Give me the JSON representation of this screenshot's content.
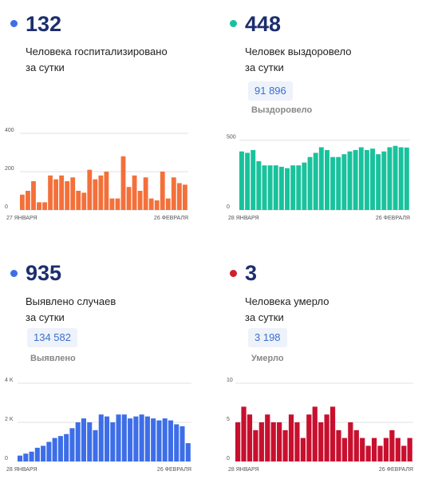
{
  "panels": [
    {
      "number": "132",
      "desc": [
        "Человека госпитализировано",
        "за сутки"
      ],
      "color": "#3d6ee8",
      "numcolor": "#1c2e6e",
      "pill": null,
      "pill_label": null
    },
    {
      "number": "448",
      "desc": [
        "Человек выздоровело",
        "за сутки"
      ],
      "color": "#18c29c",
      "numcolor": "#1c2e6e",
      "pill": "91 896",
      "pill_label": "Выздоровело"
    },
    {
      "number": "935",
      "desc": [
        "Выявлено случаев",
        "за сутки"
      ],
      "color": "#3d6ee8",
      "numcolor": "#1c2e6e",
      "pill": "134 582",
      "pill_label": "Выявлено"
    },
    {
      "number": "3",
      "desc": [
        "Человека умерло",
        "за сутки"
      ],
      "color": "#d0202b",
      "numcolor": "#1c2e6e",
      "pill": "3 198",
      "pill_label": "Умерло"
    }
  ],
  "chart_data": [
    {
      "type": "bar",
      "color": "#f4703a",
      "ylim": [
        0,
        400
      ],
      "yticks": [
        "0",
        "200",
        "400"
      ],
      "ytick_values": [
        0,
        200,
        400
      ],
      "x_start_label": "27 ЯНВАРЯ",
      "x_end_label": "26 ФЕВРАЛЯ",
      "values": [
        80,
        100,
        150,
        40,
        40,
        180,
        160,
        180,
        150,
        170,
        100,
        90,
        210,
        160,
        180,
        200,
        60,
        60,
        280,
        120,
        180,
        100,
        170,
        60,
        50,
        200,
        60,
        170,
        140,
        132
      ]
    },
    {
      "type": "bar",
      "color": "#18c29c",
      "ylim": [
        0,
        550
      ],
      "yticks": [
        "0",
        "500"
      ],
      "ytick_values": [
        0,
        500
      ],
      "x_start_label": "28 ЯНВАРЯ",
      "x_end_label": "26 ФЕВРАЛЯ",
      "values": [
        420,
        410,
        430,
        350,
        320,
        320,
        320,
        310,
        300,
        320,
        320,
        340,
        380,
        410,
        450,
        430,
        380,
        380,
        400,
        420,
        430,
        450,
        430,
        440,
        400,
        420,
        450,
        460,
        450,
        448
      ]
    },
    {
      "type": "bar",
      "color": "#3d6ee8",
      "ylim": [
        0,
        4000
      ],
      "yticks": [
        "0",
        "2 K",
        "4 K"
      ],
      "ytick_values": [
        0,
        2000,
        4000
      ],
      "x_start_label": "28 ЯНВАРЯ",
      "x_end_label": "26 ФЕВРАЛЯ",
      "values": [
        300,
        400,
        500,
        700,
        800,
        1000,
        1200,
        1300,
        1400,
        1700,
        2000,
        2200,
        2000,
        1600,
        2400,
        2300,
        2000,
        2400,
        2400,
        2200,
        2300,
        2400,
        2300,
        2200,
        2100,
        2200,
        2100,
        1900,
        1800,
        935
      ]
    },
    {
      "type": "bar",
      "color": "#c8102e",
      "ylim": [
        0,
        10
      ],
      "yticks": [
        "0",
        "5",
        "10"
      ],
      "ytick_values": [
        0,
        5,
        10
      ],
      "x_start_label": "28 ЯНВАРЯ",
      "x_end_label": "26 ФЕВРАЛЯ",
      "values": [
        5,
        7,
        6,
        4,
        5,
        6,
        5,
        5,
        4,
        6,
        5,
        3,
        6,
        7,
        5,
        6,
        7,
        4,
        3,
        5,
        4,
        3,
        2,
        3,
        2,
        3,
        4,
        3,
        2,
        3
      ]
    }
  ]
}
